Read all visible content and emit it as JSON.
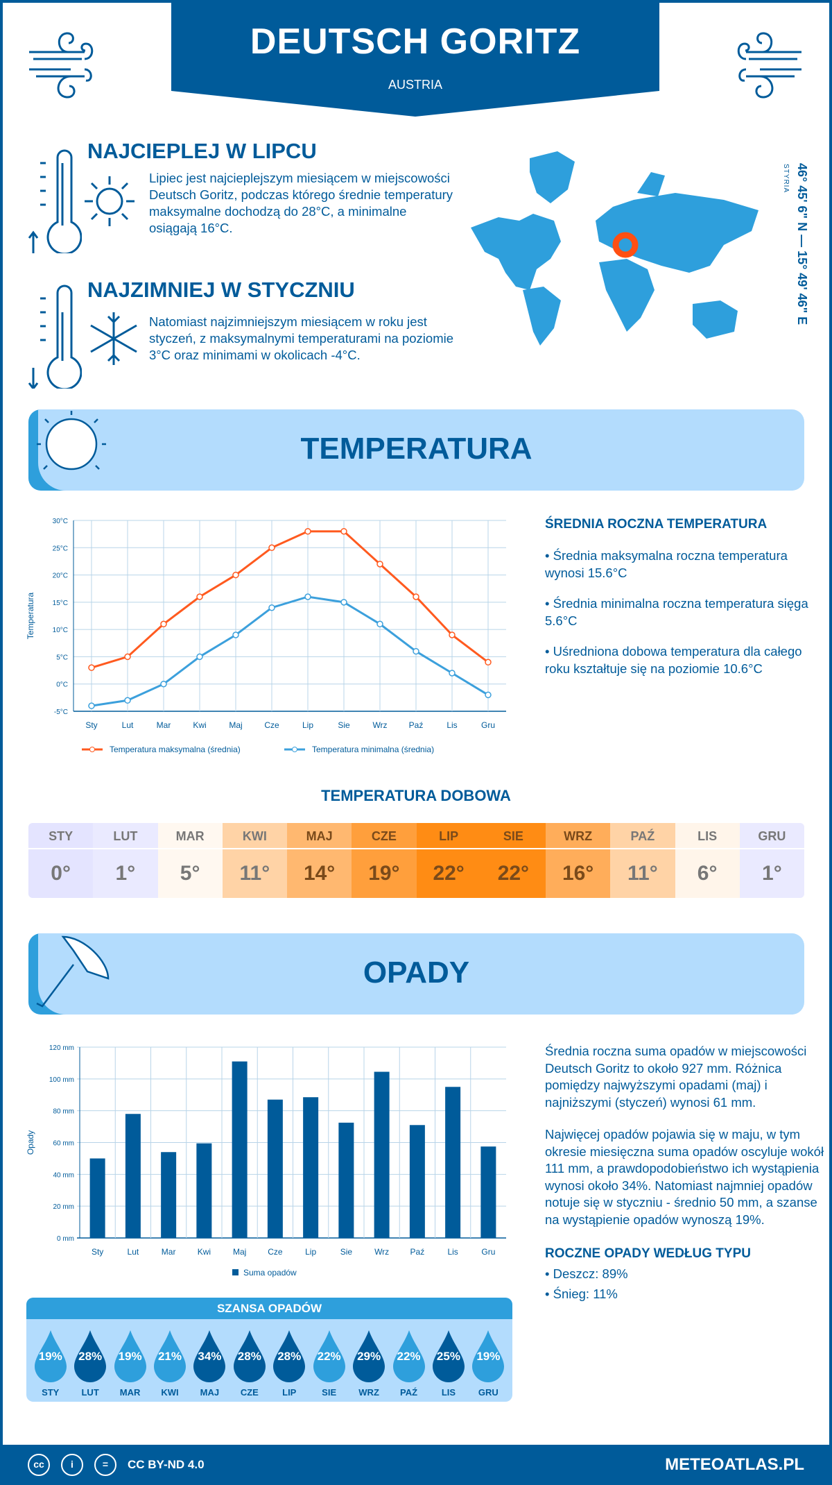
{
  "header": {
    "title": "DEUTSCH GORITZ",
    "country": "AUSTRIA"
  },
  "warmest": {
    "title": "NAJCIEPLEJ W LIPCU",
    "text": "Lipiec jest najcieplejszym miesiącem w miejscowości Deutsch Goritz, podczas którego średnie temperatury maksymalne dochodzą do 28°C, a minimalne osiągają 16°C."
  },
  "coldest": {
    "title": "NAJZIMNIEJ W STYCZNIU",
    "text": "Natomiast najzimniejszym miesiącem w roku jest styczeń, z maksymalnymi temperaturami na poziomie 3°C oraz minimami w okolicach -4°C."
  },
  "location": {
    "coords": "46° 45' 6\" N — 15° 49' 46\" E",
    "region": "STYRIA"
  },
  "temperature_section": {
    "title": "TEMPERATURA",
    "summary_title": "ŚREDNIA ROCZNA TEMPERATURA",
    "bullets": [
      "• Średnia maksymalna roczna temperatura wynosi 15.6°C",
      "• Średnia minimalna roczna temperatura sięga 5.6°C",
      "• Uśredniona dobowa temperatura dla całego roku kształtuje się na poziomie 10.6°C"
    ]
  },
  "daily": {
    "title": "TEMPERATURA DOBOWA",
    "months": [
      "STY",
      "LUT",
      "MAR",
      "KWI",
      "MAJ",
      "CZE",
      "LIP",
      "SIE",
      "WRZ",
      "PAŹ",
      "LIS",
      "GRU"
    ],
    "values": [
      "0°",
      "1°",
      "5°",
      "11°",
      "14°",
      "19°",
      "22°",
      "22°",
      "16°",
      "11°",
      "6°",
      "1°"
    ],
    "colors": [
      "#e4e4ff",
      "#eaeaff",
      "#fff8f0",
      "#ffd3a6",
      "#ffb870",
      "#ff9f3c",
      "#ff8c14",
      "#ff8c14",
      "#ffad5a",
      "#ffd3a6",
      "#fff5ea",
      "#eaeaff"
    ]
  },
  "precip_section": {
    "title": "OPADY",
    "para1": "Średnia roczna suma opadów w miejscowości Deutsch Goritz to około 927 mm. Różnica pomiędzy najwyższymi opadami (maj) i najniższymi (styczeń) wynosi 61 mm.",
    "para2": "Najwięcej opadów pojawia się w maju, w tym okresie miesięczna suma opadów oscyluje wokół 111 mm, a prawdopodobieństwo ich wystąpienia wynosi około 34%. Natomiast najmniej opadów notuje się w styczniu - średnio 50 mm, a szanse na wystąpienie opadów wynoszą 19%.",
    "type_title": "ROCZNE OPADY WEDŁUG TYPU",
    "types": [
      "• Deszcz: 89%",
      "• Śnieg: 11%"
    ]
  },
  "chance": {
    "title": "SZANSA OPADÓW",
    "months": [
      "STY",
      "LUT",
      "MAR",
      "KWI",
      "MAJ",
      "CZE",
      "LIP",
      "SIE",
      "WRZ",
      "PAŹ",
      "LIS",
      "GRU"
    ],
    "values": [
      "19%",
      "28%",
      "19%",
      "21%",
      "34%",
      "28%",
      "28%",
      "22%",
      "29%",
      "22%",
      "25%",
      "19%"
    ]
  },
  "footer": {
    "license": "CC BY-ND 4.0",
    "site": "METEOATLAS.PL"
  },
  "colors": {
    "dark_blue": "#005b9a",
    "light_blue": "#2e9fdc",
    "pale_blue": "#b3dcfd",
    "max_line": "#ff5a1f",
    "min_line": "#3ca0dc"
  },
  "chart_data": [
    {
      "type": "line",
      "ylabel": "Temperatura",
      "categories": [
        "Sty",
        "Lut",
        "Mar",
        "Kwi",
        "Maj",
        "Cze",
        "Lip",
        "Sie",
        "Wrz",
        "Paź",
        "Lis",
        "Gru"
      ],
      "ylim": [
        -5,
        30
      ],
      "yticks": [
        "-5°C",
        "0°C",
        "5°C",
        "10°C",
        "15°C",
        "20°C",
        "25°C",
        "30°C"
      ],
      "grid": true,
      "legend": "bottom",
      "series": [
        {
          "name": "Temperatura maksymalna (średnia)",
          "values": [
            3,
            5,
            11,
            16,
            20,
            25,
            28,
            28,
            22,
            16,
            9,
            4
          ]
        },
        {
          "name": "Temperatura minimalna (średnia)",
          "values": [
            -4,
            -3,
            0,
            5,
            9,
            14,
            16,
            15,
            11,
            6,
            2,
            -2
          ]
        }
      ]
    },
    {
      "type": "bar",
      "ylabel": "Opady",
      "categories": [
        "Sty",
        "Lut",
        "Mar",
        "Kwi",
        "Maj",
        "Cze",
        "Lip",
        "Sie",
        "Wrz",
        "Paź",
        "Lis",
        "Gru"
      ],
      "ylim": [
        0,
        120
      ],
      "yticks": [
        "0 mm",
        "20 mm",
        "40 mm",
        "60 mm",
        "80 mm",
        "100 mm",
        "120 mm"
      ],
      "grid": true,
      "legend": "bottom",
      "series": [
        {
          "name": "Suma opadów",
          "values": [
            50,
            78,
            54,
            59.5,
            111,
            87,
            88.5,
            72.5,
            104.5,
            71,
            95,
            57.5
          ]
        }
      ]
    }
  ]
}
